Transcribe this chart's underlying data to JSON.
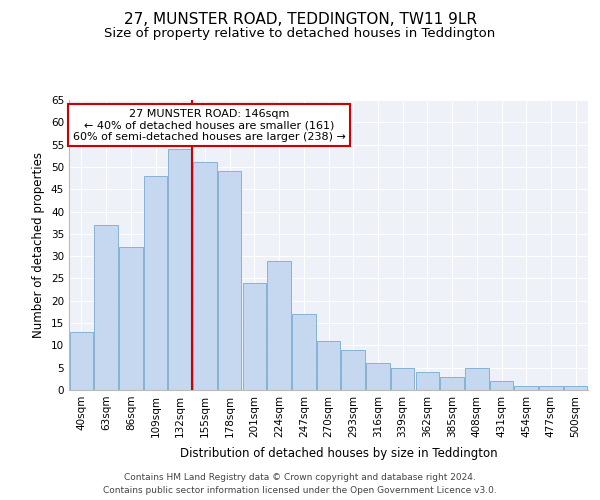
{
  "title": "27, MUNSTER ROAD, TEDDINGTON, TW11 9LR",
  "subtitle": "Size of property relative to detached houses in Teddington",
  "xlabel": "Distribution of detached houses by size in Teddington",
  "ylabel": "Number of detached properties",
  "bar_labels": [
    "40sqm",
    "63sqm",
    "86sqm",
    "109sqm",
    "132sqm",
    "155sqm",
    "178sqm",
    "201sqm",
    "224sqm",
    "247sqm",
    "270sqm",
    "293sqm",
    "316sqm",
    "339sqm",
    "362sqm",
    "385sqm",
    "408sqm",
    "431sqm",
    "454sqm",
    "477sqm",
    "500sqm"
  ],
  "bar_values": [
    13,
    37,
    32,
    48,
    54,
    51,
    49,
    24,
    29,
    17,
    11,
    9,
    6,
    5,
    4,
    3,
    5,
    2,
    1,
    1,
    1
  ],
  "bar_color": "#c5d8f0",
  "bar_edge_color": "#7aaad0",
  "vline_color": "#cc0000",
  "annotation_title": "27 MUNSTER ROAD: 146sqm",
  "annotation_line1": "← 40% of detached houses are smaller (161)",
  "annotation_line2": "60% of semi-detached houses are larger (238) →",
  "annotation_box_color": "#ffffff",
  "annotation_box_edge": "#cc0000",
  "ylim": [
    0,
    65
  ],
  "yticks": [
    0,
    5,
    10,
    15,
    20,
    25,
    30,
    35,
    40,
    45,
    50,
    55,
    60,
    65
  ],
  "background_color": "#eef2f8",
  "grid_color": "#ffffff",
  "footer_line1": "Contains HM Land Registry data © Crown copyright and database right 2024.",
  "footer_line2": "Contains public sector information licensed under the Open Government Licence v3.0.",
  "title_fontsize": 11,
  "subtitle_fontsize": 9.5,
  "axis_label_fontsize": 8.5,
  "tick_fontsize": 7.5,
  "annotation_fontsize": 8,
  "footer_fontsize": 6.5
}
